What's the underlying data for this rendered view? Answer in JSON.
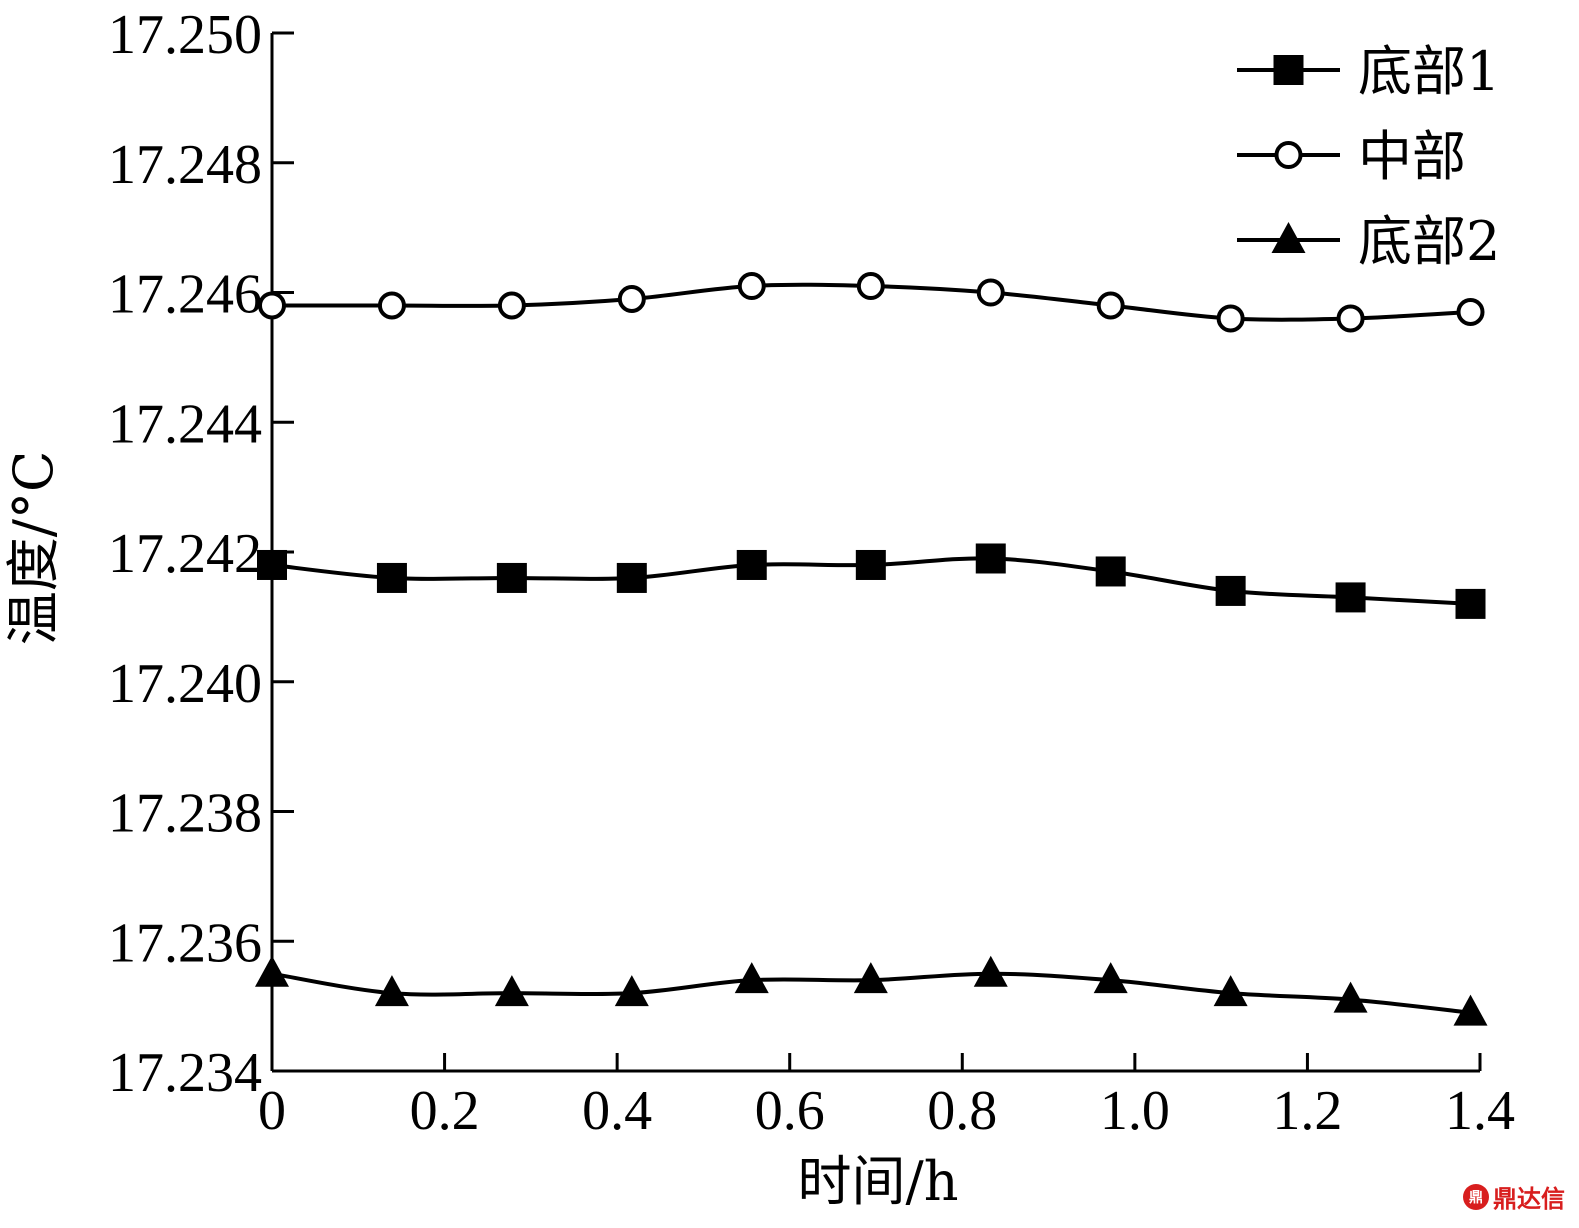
{
  "chart_data": {
    "type": "line",
    "xlabel": "时间/h",
    "ylabel": "温度/°C",
    "xlim": [
      0,
      1.4
    ],
    "ylim": [
      17.234,
      17.25
    ],
    "xticks": [
      "0",
      "0.2",
      "0.4",
      "0.6",
      "0.8",
      "1.0",
      "1.2",
      "1.4"
    ],
    "yticks": [
      "17.250",
      "17.248",
      "17.246",
      "17.244",
      "17.242",
      "17.240",
      "17.238",
      "17.236",
      "17.234"
    ],
    "x": [
      0,
      0.139,
      0.278,
      0.417,
      0.556,
      0.694,
      0.833,
      0.972,
      1.111,
      1.25,
      1.389
    ],
    "legend_position": "top-right",
    "grid": false,
    "series": [
      {
        "name": "底部1",
        "marker": "filled-square",
        "values": [
          17.2418,
          17.2416,
          17.2416,
          17.2416,
          17.2418,
          17.2418,
          17.2419,
          17.2417,
          17.2414,
          17.2413,
          17.2412
        ]
      },
      {
        "name": "中部",
        "marker": "open-circle",
        "values": [
          17.2458,
          17.2458,
          17.2458,
          17.2459,
          17.2461,
          17.2461,
          17.246,
          17.2458,
          17.2456,
          17.2456,
          17.2457
        ]
      },
      {
        "name": "底部2",
        "marker": "filled-triangle",
        "values": [
          17.2355,
          17.2352,
          17.2352,
          17.2352,
          17.2354,
          17.2354,
          17.2355,
          17.2354,
          17.2352,
          17.2351,
          17.2349
        ]
      }
    ]
  },
  "watermark": {
    "text": "鼎达信",
    "color": "#d81e1e"
  }
}
